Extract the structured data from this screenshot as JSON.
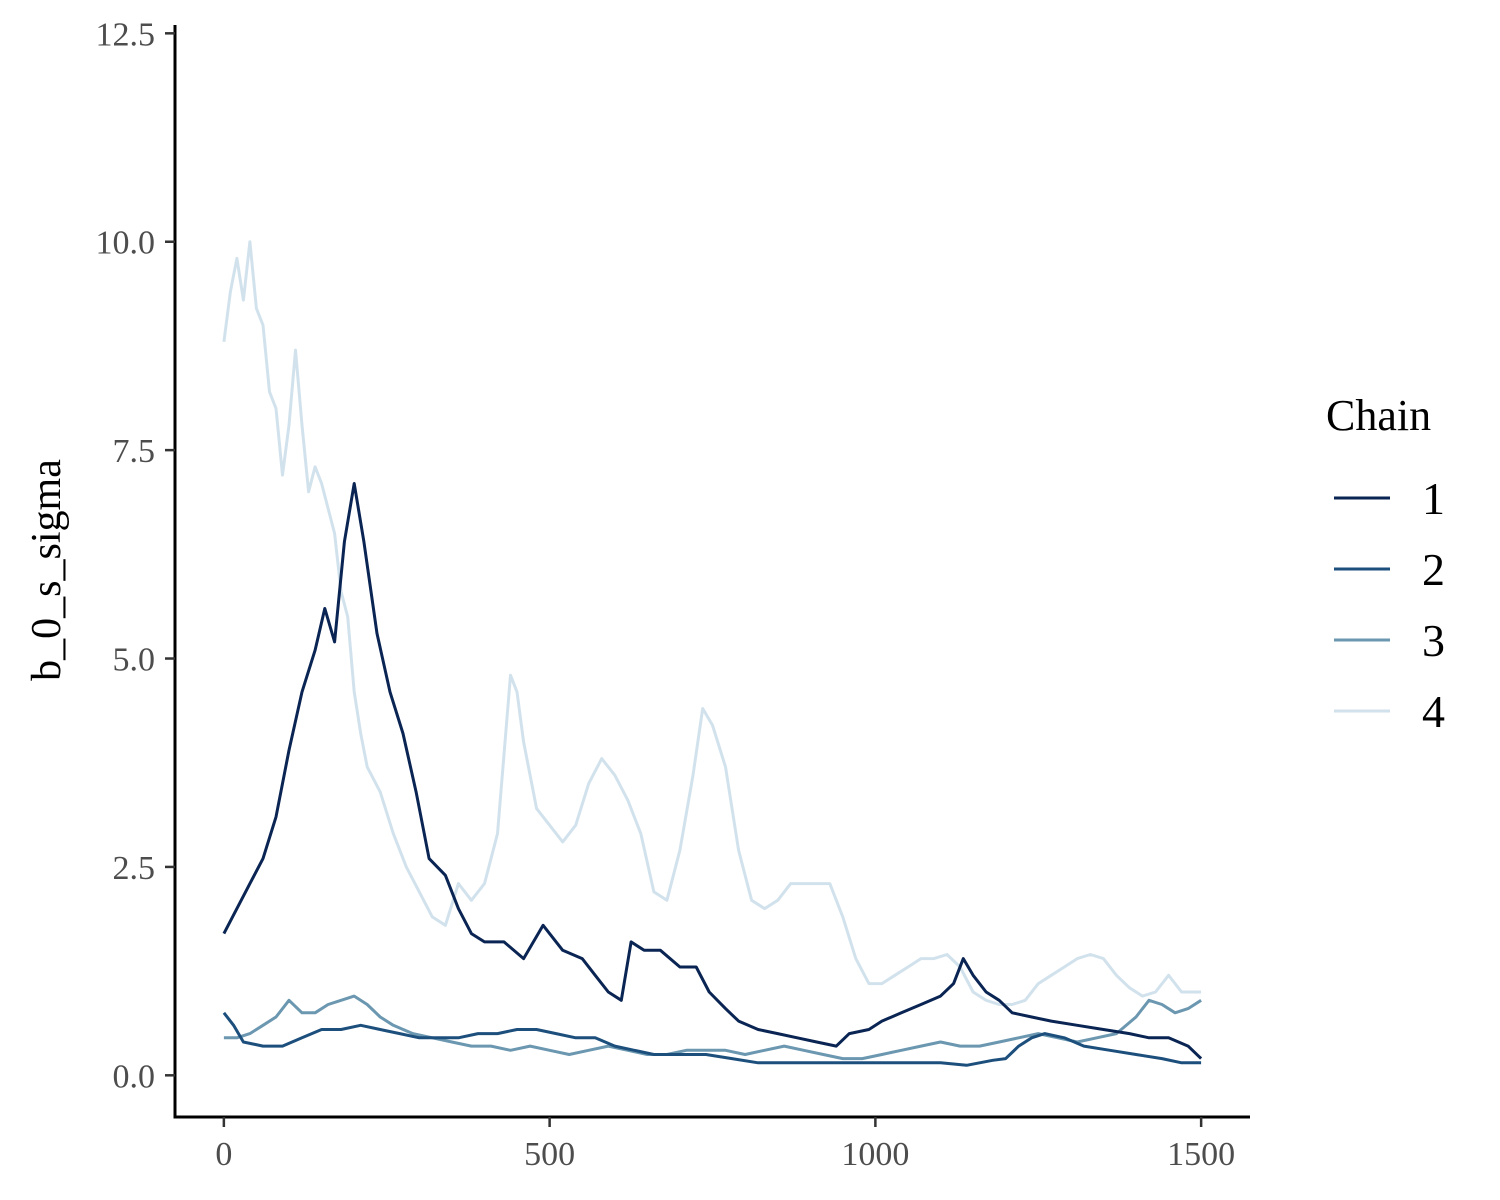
{
  "chart_data": {
    "type": "line",
    "title": "",
    "xlabel": "",
    "ylabel": "b_0_s_sigma",
    "xlim": [
      -75,
      1575
    ],
    "ylim": [
      -0.5,
      12.6
    ],
    "xticks": [
      0,
      500,
      1000,
      1500
    ],
    "yticks": [
      0.0,
      2.5,
      5.0,
      7.5,
      10.0,
      12.5
    ],
    "xtick_labels": [
      "0",
      "500",
      "1000",
      "1500"
    ],
    "ytick_labels": [
      "0.0",
      "2.5",
      "5.0",
      "7.5",
      "10.0",
      "12.5"
    ],
    "grid": false,
    "legend": {
      "title": "Chain",
      "position": "right"
    },
    "series": [
      {
        "name": "1",
        "color": "#0a2553",
        "points": [
          [
            0,
            1.7
          ],
          [
            20,
            2.0
          ],
          [
            40,
            2.3
          ],
          [
            60,
            2.6
          ],
          [
            80,
            3.1
          ],
          [
            100,
            3.9
          ],
          [
            120,
            4.6
          ],
          [
            140,
            5.1
          ],
          [
            155,
            5.6
          ],
          [
            170,
            5.2
          ],
          [
            185,
            6.4
          ],
          [
            200,
            7.1
          ],
          [
            215,
            6.4
          ],
          [
            235,
            5.3
          ],
          [
            255,
            4.6
          ],
          [
            275,
            4.1
          ],
          [
            295,
            3.4
          ],
          [
            315,
            2.6
          ],
          [
            340,
            2.4
          ],
          [
            360,
            2.0
          ],
          [
            380,
            1.7
          ],
          [
            400,
            1.6
          ],
          [
            430,
            1.6
          ],
          [
            460,
            1.4
          ],
          [
            490,
            1.8
          ],
          [
            520,
            1.5
          ],
          [
            550,
            1.4
          ],
          [
            570,
            1.2
          ],
          [
            590,
            1.0
          ],
          [
            610,
            0.9
          ],
          [
            625,
            1.6
          ],
          [
            645,
            1.5
          ],
          [
            670,
            1.5
          ],
          [
            700,
            1.3
          ],
          [
            725,
            1.3
          ],
          [
            745,
            1.0
          ],
          [
            770,
            0.8
          ],
          [
            790,
            0.65
          ],
          [
            820,
            0.55
          ],
          [
            850,
            0.5
          ],
          [
            880,
            0.45
          ],
          [
            910,
            0.4
          ],
          [
            940,
            0.35
          ],
          [
            960,
            0.5
          ],
          [
            990,
            0.55
          ],
          [
            1010,
            0.65
          ],
          [
            1040,
            0.75
          ],
          [
            1070,
            0.85
          ],
          [
            1100,
            0.95
          ],
          [
            1120,
            1.1
          ],
          [
            1135,
            1.4
          ],
          [
            1150,
            1.2
          ],
          [
            1170,
            1.0
          ],
          [
            1190,
            0.9
          ],
          [
            1210,
            0.75
          ],
          [
            1240,
            0.7
          ],
          [
            1270,
            0.65
          ],
          [
            1310,
            0.6
          ],
          [
            1350,
            0.55
          ],
          [
            1390,
            0.5
          ],
          [
            1420,
            0.45
          ],
          [
            1450,
            0.45
          ],
          [
            1480,
            0.35
          ],
          [
            1500,
            0.2
          ]
        ]
      },
      {
        "name": "2",
        "color": "#1d4f7d",
        "points": [
          [
            0,
            0.75
          ],
          [
            15,
            0.6
          ],
          [
            30,
            0.4
          ],
          [
            60,
            0.35
          ],
          [
            90,
            0.35
          ],
          [
            120,
            0.45
          ],
          [
            150,
            0.55
          ],
          [
            180,
            0.55
          ],
          [
            210,
            0.6
          ],
          [
            240,
            0.55
          ],
          [
            270,
            0.5
          ],
          [
            300,
            0.45
          ],
          [
            330,
            0.45
          ],
          [
            360,
            0.45
          ],
          [
            390,
            0.5
          ],
          [
            420,
            0.5
          ],
          [
            450,
            0.55
          ],
          [
            480,
            0.55
          ],
          [
            510,
            0.5
          ],
          [
            540,
            0.45
          ],
          [
            570,
            0.45
          ],
          [
            600,
            0.35
          ],
          [
            630,
            0.3
          ],
          [
            660,
            0.25
          ],
          [
            700,
            0.25
          ],
          [
            740,
            0.25
          ],
          [
            780,
            0.2
          ],
          [
            820,
            0.15
          ],
          [
            860,
            0.15
          ],
          [
            900,
            0.15
          ],
          [
            940,
            0.15
          ],
          [
            980,
            0.15
          ],
          [
            1020,
            0.15
          ],
          [
            1060,
            0.15
          ],
          [
            1100,
            0.15
          ],
          [
            1140,
            0.12
          ],
          [
            1180,
            0.18
          ],
          [
            1200,
            0.2
          ],
          [
            1220,
            0.35
          ],
          [
            1240,
            0.45
          ],
          [
            1260,
            0.5
          ],
          [
            1290,
            0.45
          ],
          [
            1320,
            0.35
          ],
          [
            1360,
            0.3
          ],
          [
            1400,
            0.25
          ],
          [
            1440,
            0.2
          ],
          [
            1470,
            0.15
          ],
          [
            1500,
            0.15
          ]
        ]
      },
      {
        "name": "3",
        "color": "#6b97b0",
        "points": [
          [
            0,
            0.45
          ],
          [
            20,
            0.45
          ],
          [
            40,
            0.5
          ],
          [
            60,
            0.6
          ],
          [
            80,
            0.7
          ],
          [
            100,
            0.9
          ],
          [
            120,
            0.75
          ],
          [
            140,
            0.75
          ],
          [
            160,
            0.85
          ],
          [
            180,
            0.9
          ],
          [
            200,
            0.95
          ],
          [
            220,
            0.85
          ],
          [
            240,
            0.7
          ],
          [
            260,
            0.6
          ],
          [
            290,
            0.5
          ],
          [
            320,
            0.45
          ],
          [
            350,
            0.4
          ],
          [
            380,
            0.35
          ],
          [
            410,
            0.35
          ],
          [
            440,
            0.3
          ],
          [
            470,
            0.35
          ],
          [
            500,
            0.3
          ],
          [
            530,
            0.25
          ],
          [
            560,
            0.3
          ],
          [
            590,
            0.35
          ],
          [
            620,
            0.3
          ],
          [
            650,
            0.25
          ],
          [
            680,
            0.25
          ],
          [
            710,
            0.3
          ],
          [
            740,
            0.3
          ],
          [
            770,
            0.3
          ],
          [
            800,
            0.25
          ],
          [
            830,
            0.3
          ],
          [
            860,
            0.35
          ],
          [
            890,
            0.3
          ],
          [
            920,
            0.25
          ],
          [
            950,
            0.2
          ],
          [
            980,
            0.2
          ],
          [
            1010,
            0.25
          ],
          [
            1040,
            0.3
          ],
          [
            1070,
            0.35
          ],
          [
            1100,
            0.4
          ],
          [
            1130,
            0.35
          ],
          [
            1160,
            0.35
          ],
          [
            1190,
            0.4
          ],
          [
            1220,
            0.45
          ],
          [
            1250,
            0.5
          ],
          [
            1280,
            0.45
          ],
          [
            1310,
            0.4
          ],
          [
            1340,
            0.45
          ],
          [
            1370,
            0.5
          ],
          [
            1400,
            0.7
          ],
          [
            1420,
            0.9
          ],
          [
            1440,
            0.85
          ],
          [
            1460,
            0.75
          ],
          [
            1480,
            0.8
          ],
          [
            1500,
            0.9
          ]
        ]
      },
      {
        "name": "4",
        "color": "#d2e2ed",
        "points": [
          [
            0,
            8.8
          ],
          [
            10,
            9.4
          ],
          [
            20,
            9.8
          ],
          [
            30,
            9.3
          ],
          [
            40,
            10.0
          ],
          [
            50,
            9.2
          ],
          [
            60,
            9.0
          ],
          [
            70,
            8.2
          ],
          [
            80,
            8.0
          ],
          [
            90,
            7.2
          ],
          [
            100,
            7.8
          ],
          [
            110,
            8.7
          ],
          [
            120,
            7.8
          ],
          [
            130,
            7.0
          ],
          [
            140,
            7.3
          ],
          [
            150,
            7.1
          ],
          [
            160,
            6.8
          ],
          [
            170,
            6.5
          ],
          [
            180,
            5.8
          ],
          [
            190,
            5.5
          ],
          [
            200,
            4.6
          ],
          [
            210,
            4.1
          ],
          [
            220,
            3.7
          ],
          [
            240,
            3.4
          ],
          [
            260,
            2.9
          ],
          [
            280,
            2.5
          ],
          [
            300,
            2.2
          ],
          [
            320,
            1.9
          ],
          [
            340,
            1.8
          ],
          [
            360,
            2.3
          ],
          [
            380,
            2.1
          ],
          [
            400,
            2.3
          ],
          [
            420,
            2.9
          ],
          [
            440,
            4.8
          ],
          [
            450,
            4.6
          ],
          [
            460,
            4.0
          ],
          [
            480,
            3.2
          ],
          [
            500,
            3.0
          ],
          [
            520,
            2.8
          ],
          [
            540,
            3.0
          ],
          [
            560,
            3.5
          ],
          [
            580,
            3.8
          ],
          [
            600,
            3.6
          ],
          [
            620,
            3.3
          ],
          [
            640,
            2.9
          ],
          [
            660,
            2.2
          ],
          [
            680,
            2.1
          ],
          [
            700,
            2.7
          ],
          [
            720,
            3.6
          ],
          [
            735,
            4.4
          ],
          [
            750,
            4.2
          ],
          [
            770,
            3.7
          ],
          [
            790,
            2.7
          ],
          [
            810,
            2.1
          ],
          [
            830,
            2.0
          ],
          [
            850,
            2.1
          ],
          [
            870,
            2.3
          ],
          [
            890,
            2.3
          ],
          [
            910,
            2.3
          ],
          [
            930,
            2.3
          ],
          [
            950,
            1.9
          ],
          [
            970,
            1.4
          ],
          [
            990,
            1.1
          ],
          [
            1010,
            1.1
          ],
          [
            1030,
            1.2
          ],
          [
            1050,
            1.3
          ],
          [
            1070,
            1.4
          ],
          [
            1090,
            1.4
          ],
          [
            1110,
            1.45
          ],
          [
            1130,
            1.3
          ],
          [
            1150,
            1.0
          ],
          [
            1170,
            0.9
          ],
          [
            1190,
            0.85
          ],
          [
            1210,
            0.85
          ],
          [
            1230,
            0.9
          ],
          [
            1250,
            1.1
          ],
          [
            1270,
            1.2
          ],
          [
            1290,
            1.3
          ],
          [
            1310,
            1.4
          ],
          [
            1330,
            1.45
          ],
          [
            1350,
            1.4
          ],
          [
            1370,
            1.2
          ],
          [
            1390,
            1.05
          ],
          [
            1410,
            0.95
          ],
          [
            1430,
            1.0
          ],
          [
            1450,
            1.2
          ],
          [
            1470,
            1.0
          ],
          [
            1490,
            1.0
          ],
          [
            1500,
            1.0
          ]
        ]
      }
    ]
  }
}
